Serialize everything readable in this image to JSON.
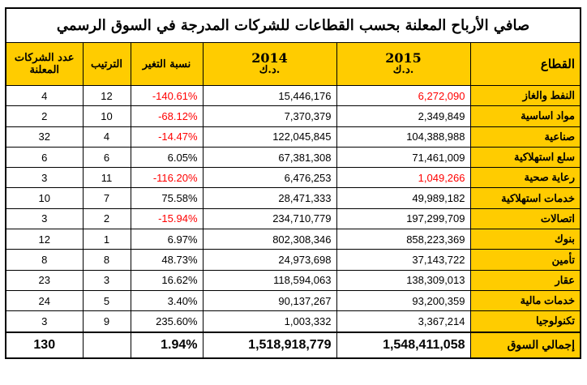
{
  "title": "صافي الأرباح المعلنة بحسب القطاعات للشركات المدرجة في السوق الرسمي",
  "headers": {
    "count": "عدد الشركات المعلنة",
    "rank": "الترتيب",
    "change": "نسبة التغير",
    "y2014": "2014",
    "y2015": "2015",
    "unit": "د.ك.",
    "sector": "القطاع"
  },
  "colors": {
    "header_bg": "#FFCC00",
    "negative": "#FF0000"
  },
  "rows": [
    {
      "sector": "النفط والغاز",
      "y2015": "6,272,090",
      "y2014": "15,446,176",
      "change": "-140.61%",
      "rank": "12",
      "count": "4",
      "neg2015": true,
      "negChange": true
    },
    {
      "sector": "مواد اساسية",
      "y2015": "2,349,849",
      "y2014": "7,370,379",
      "change": "-68.12%",
      "rank": "10",
      "count": "2",
      "neg2015": false,
      "negChange": true
    },
    {
      "sector": "صناعية",
      "y2015": "104,388,988",
      "y2014": "122,045,845",
      "change": "-14.47%",
      "rank": "4",
      "count": "32",
      "neg2015": false,
      "negChange": true
    },
    {
      "sector": "سلع استهلاكية",
      "y2015": "71,461,009",
      "y2014": "67,381,308",
      "change": "6.05%",
      "rank": "6",
      "count": "6",
      "neg2015": false,
      "negChange": false
    },
    {
      "sector": "رعاية صحية",
      "y2015": "1,049,266",
      "y2014": "6,476,253",
      "change": "-116.20%",
      "rank": "11",
      "count": "3",
      "neg2015": true,
      "negChange": true
    },
    {
      "sector": "خدمات استهلاكية",
      "y2015": "49,989,182",
      "y2014": "28,471,333",
      "change": "75.58%",
      "rank": "7",
      "count": "10",
      "neg2015": false,
      "negChange": false
    },
    {
      "sector": "اتصالات",
      "y2015": "197,299,709",
      "y2014": "234,710,779",
      "change": "-15.94%",
      "rank": "2",
      "count": "3",
      "neg2015": false,
      "negChange": true
    },
    {
      "sector": "بنوك",
      "y2015": "858,223,369",
      "y2014": "802,308,346",
      "change": "6.97%",
      "rank": "1",
      "count": "12",
      "neg2015": false,
      "negChange": false
    },
    {
      "sector": "تأمين",
      "y2015": "37,143,722",
      "y2014": "24,973,698",
      "change": "48.73%",
      "rank": "8",
      "count": "8",
      "neg2015": false,
      "negChange": false
    },
    {
      "sector": "عقار",
      "y2015": "138,309,013",
      "y2014": "118,594,063",
      "change": "16.62%",
      "rank": "3",
      "count": "23",
      "neg2015": false,
      "negChange": false
    },
    {
      "sector": "خدمات مالية",
      "y2015": "93,200,359",
      "y2014": "90,137,267",
      "change": "3.40%",
      "rank": "5",
      "count": "24",
      "neg2015": false,
      "negChange": false
    },
    {
      "sector": "تكنولوجيا",
      "y2015": "3,367,214",
      "y2014": "1,003,332",
      "change": "235.60%",
      "rank": "9",
      "count": "3",
      "neg2015": false,
      "negChange": false
    }
  ],
  "total": {
    "sector": "إجمالي السوق",
    "y2015": "1,548,411,058",
    "y2014": "1,518,918,779",
    "change": "1.94%",
    "count": "130"
  }
}
